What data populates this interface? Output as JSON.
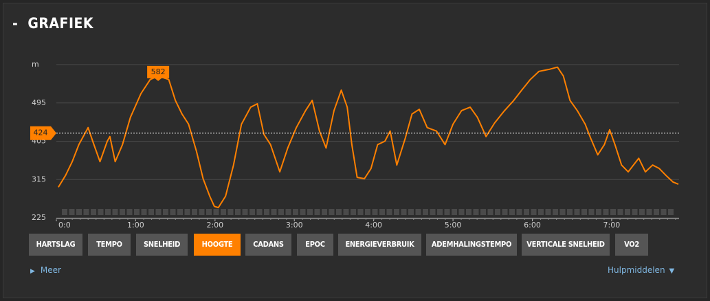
{
  "header": {
    "collapse": "-",
    "title": "GRAFIEK"
  },
  "chart_data": {
    "type": "line",
    "y_unit": "m",
    "x": [
      1.5,
      7,
      12,
      17,
      24,
      27.5,
      33,
      38.5,
      40.5,
      44.5,
      50,
      56,
      64,
      71,
      77,
      85,
      90,
      95,
      100,
      106,
      111,
      116,
      119.5,
      122.5,
      128,
      134,
      140,
      147,
      152,
      157,
      162,
      169,
      175,
      181.5,
      188.5,
      193.5,
      199,
      204,
      210,
      215.5,
      220,
      223.5,
      227.5,
      233,
      238,
      243,
      248.5,
      252.5,
      257.5,
      264,
      269,
      274.5,
      280.5,
      287.5,
      294,
      300,
      306.5,
      313,
      318.5,
      325,
      331.5,
      339,
      346,
      352,
      358.5,
      365,
      373,
      379,
      383.5,
      388.5,
      394,
      400,
      404,
      409.5,
      414.5,
      418.5,
      422.5,
      427.5,
      432.5,
      440.5,
      445.5,
      451,
      456,
      461,
      466.5,
      470.5
    ],
    "series": [
      {
        "name": "Hoogte",
        "color": "#ff8000",
        "values": [
          297,
          325,
          357,
          397,
          437,
          405,
          357,
          405,
          416,
          357,
          397,
          461,
          517,
          550,
          558,
          550,
          501,
          469,
          445,
          381,
          317,
          276,
          252,
          249,
          276,
          349,
          445,
          485,
          493,
          421,
          397,
          333,
          389,
          437,
          477,
          501,
          429,
          389,
          477,
          525,
          485,
          397,
          320,
          317,
          341,
          397,
          405,
          429,
          349,
          413,
          469,
          480,
          437,
          429,
          397,
          445,
          477,
          485,
          461,
          416,
          448,
          477,
          501,
          525,
          550,
          569,
          574,
          579,
          558,
          501,
          477,
          445,
          413,
          373,
          397,
          432,
          397,
          349,
          333,
          365,
          333,
          349,
          341,
          325,
          309,
          304
        ]
      }
    ],
    "xlim": [
      0,
      471
    ],
    "ylim": [
      225,
      585
    ],
    "yticks": [
      225,
      315,
      405,
      495
    ],
    "xticks": [
      {
        "value": 0,
        "label": "0:0"
      },
      {
        "value": 60,
        "label": "1:00"
      },
      {
        "value": 120,
        "label": "2:00"
      },
      {
        "value": 180,
        "label": "3:00"
      },
      {
        "value": 240,
        "label": "4:00"
      },
      {
        "value": 300,
        "label": "5:00"
      },
      {
        "value": 360,
        "label": "6:00"
      },
      {
        "value": 420,
        "label": "7:00"
      }
    ],
    "reference_line": {
      "value": 424
    },
    "peak_label": {
      "value": 582,
      "x": 77
    },
    "grid": true
  },
  "buttons": [
    {
      "label": "HARTSLAG"
    },
    {
      "label": "TEMPO"
    },
    {
      "label": "SNELHEID"
    },
    {
      "label": "HOOGTE",
      "active": true
    },
    {
      "label": "CADANS"
    },
    {
      "label": "EPOC"
    },
    {
      "label": "ENERGIEVERBRUIK"
    },
    {
      "label": "ADEMHALINGSTEMPO"
    },
    {
      "label": "VERTICALE SNELHEID"
    },
    {
      "label": "VO2"
    }
  ],
  "links": {
    "more": "Meer",
    "tools": "Hulpmiddelen"
  }
}
